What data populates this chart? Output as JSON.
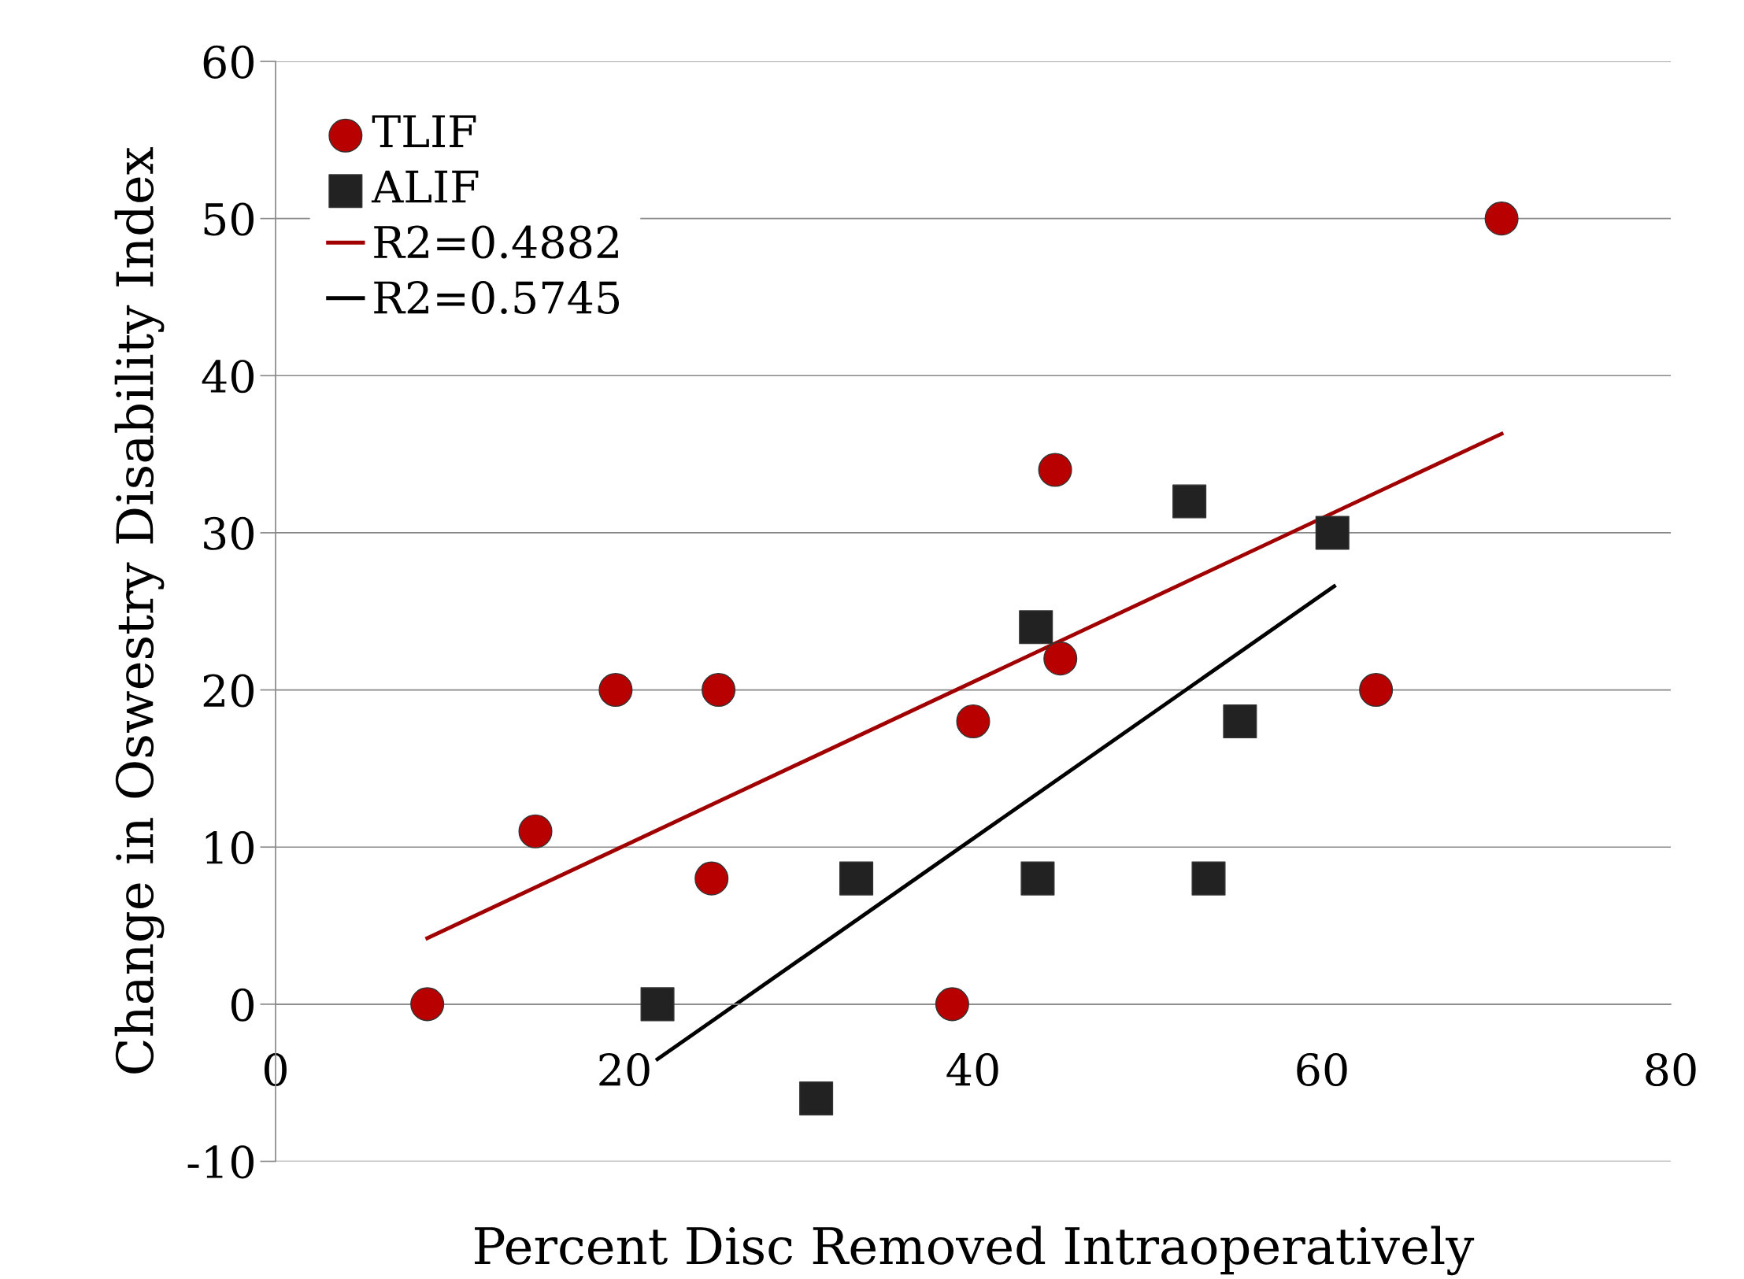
{
  "chart_data": {
    "type": "scatter",
    "xlabel": "Percent Disc Removed Intraoperatively",
    "ylabel": "Change in Oswestry Disability Index",
    "xlim": [
      0,
      80
    ],
    "xticks": [
      0,
      20,
      40,
      60,
      80
    ],
    "ylim": [
      -10,
      60
    ],
    "yticks": [
      -10,
      0,
      10,
      20,
      30,
      40,
      50,
      60
    ],
    "grid": "y",
    "legend": "top left",
    "series": [
      {
        "name": "TLIF",
        "marker": "circle",
        "color": "#b80000",
        "x": [
          8.7,
          14.9,
          19.5,
          25.4,
          25.0,
          38.8,
          40.0,
          44.7,
          45.0,
          63.1,
          70.3
        ],
        "values": [
          0,
          11,
          20,
          20,
          8,
          0,
          18,
          34,
          22,
          20,
          50
        ]
      },
      {
        "name": "ALIF",
        "marker": "square",
        "color": "#222222",
        "x": [
          21.9,
          31.0,
          33.3,
          43.6,
          43.7,
          52.4,
          53.5,
          55.3,
          60.6
        ],
        "values": [
          0,
          -6,
          8,
          24,
          8,
          32,
          8,
          18,
          30
        ]
      },
      {
        "name": "R2=0.4882",
        "type": "line",
        "color": "#a00000",
        "x": [
          8.7,
          70.3
        ],
        "values": [
          4.2,
          36.3
        ]
      },
      {
        "name": "R2=0.5745",
        "type": "line",
        "color": "#000000",
        "x": [
          21.9,
          60.7
        ],
        "values": [
          -3.5,
          26.6
        ]
      }
    ]
  }
}
